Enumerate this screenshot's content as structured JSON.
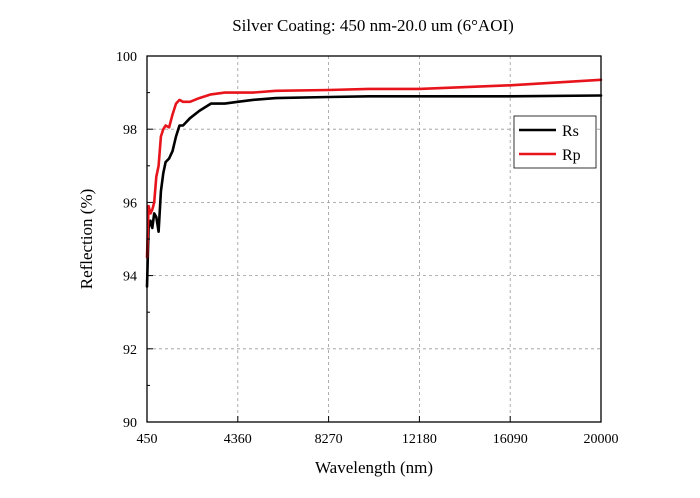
{
  "chart_data": {
    "type": "line",
    "title": "Silver Coating: 450 nm-20.0 um (6°AOI)",
    "xlabel": "Wavelength (nm)",
    "ylabel": "Reflection (%)",
    "xlim": [
      450,
      20000
    ],
    "ylim": [
      90,
      100
    ],
    "xticks": [
      "450",
      "4360",
      "8270",
      "12180",
      "16090",
      "20000"
    ],
    "xtick_values": [
      450,
      4360,
      8270,
      12180,
      16090,
      20000
    ],
    "yticks": [
      "90",
      "92",
      "94",
      "96",
      "98",
      "100"
    ],
    "ytick_values": [
      90,
      92,
      94,
      96,
      98,
      100
    ],
    "grid": true,
    "legend_position": "top-right",
    "series": [
      {
        "name": "Rs",
        "color": "#000000",
        "x": [
          450,
          520,
          600,
          680,
          760,
          850,
          950,
          1050,
          1150,
          1250,
          1400,
          1550,
          1700,
          1850,
          2000,
          2300,
          2700,
          3200,
          3800,
          4360,
          5000,
          6000,
          8270,
          10000,
          12180,
          16090,
          20000
        ],
        "y": [
          93.7,
          95.3,
          95.5,
          95.3,
          95.7,
          95.6,
          95.2,
          96.3,
          96.8,
          97.1,
          97.2,
          97.4,
          97.8,
          98.1,
          98.1,
          98.3,
          98.5,
          98.7,
          98.7,
          98.75,
          98.8,
          98.85,
          98.88,
          98.9,
          98.9,
          98.9,
          98.92
        ]
      },
      {
        "name": "Rp",
        "color": "#e8141b",
        "x": [
          450,
          520,
          600,
          680,
          760,
          850,
          950,
          1050,
          1150,
          1250,
          1400,
          1550,
          1700,
          1850,
          2000,
          2300,
          2700,
          3200,
          3800,
          4360,
          5000,
          6000,
          8270,
          10000,
          12180,
          16090,
          20000
        ],
        "y": [
          94.5,
          95.9,
          95.7,
          95.8,
          96.0,
          96.7,
          97.0,
          97.8,
          98.0,
          98.1,
          98.05,
          98.4,
          98.7,
          98.8,
          98.75,
          98.75,
          98.85,
          98.95,
          99.0,
          99.0,
          99.0,
          99.05,
          99.07,
          99.1,
          99.1,
          99.2,
          99.35
        ]
      }
    ]
  }
}
